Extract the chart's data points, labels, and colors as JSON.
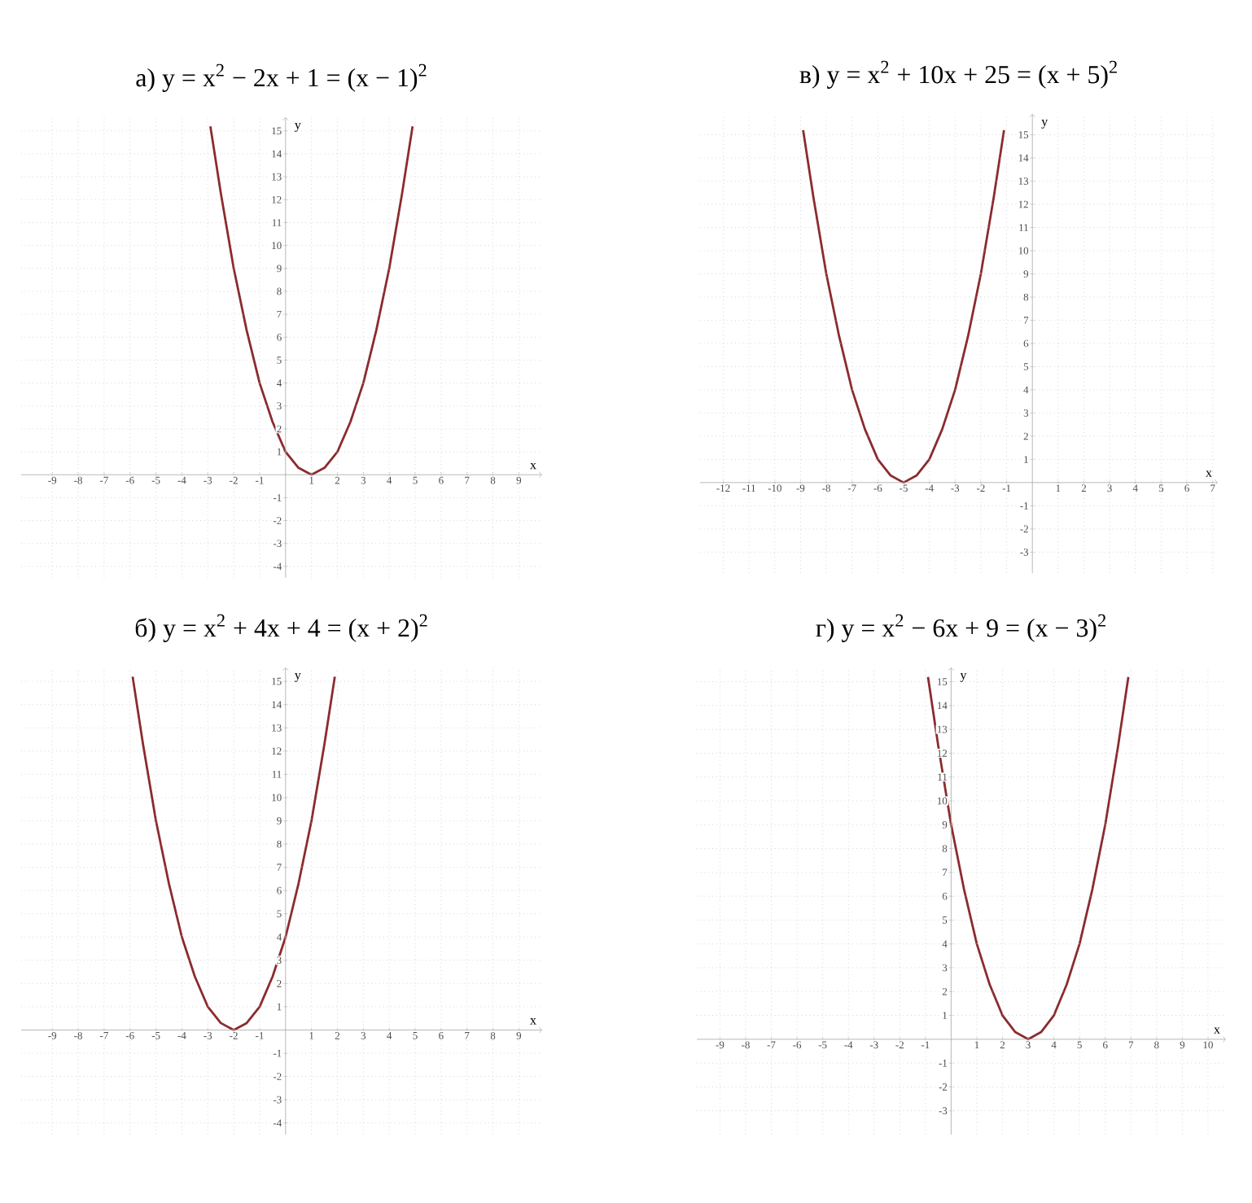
{
  "chart_data": [
    {
      "type": "line",
      "title": "а) y = x$^{2}$ − 2x + 1 = (x − 1)$^{2}$",
      "xlabel": "x",
      "ylabel": "y",
      "color": "#8b2b2e",
      "grid": true,
      "xlim": [
        -10.2,
        9.9
      ],
      "ylim": [
        -4.5,
        15.6
      ],
      "xticks": [
        -9,
        -8,
        -7,
        -6,
        -5,
        -4,
        -3,
        -2,
        -1,
        1,
        2,
        3,
        4,
        5,
        6,
        7,
        8,
        9
      ],
      "yticks": [
        -4,
        -3,
        -2,
        -1,
        1,
        2,
        3,
        4,
        5,
        6,
        7,
        8,
        9,
        10,
        11,
        12,
        13,
        14,
        15
      ],
      "x": [
        -2.9,
        -2.5,
        -2,
        -1.5,
        -1,
        -0.5,
        0,
        0.5,
        1,
        1.5,
        2,
        2.5,
        3,
        3.5,
        4,
        4.5,
        4.9
      ],
      "values": [
        15.2,
        12.3,
        9,
        6.3,
        4,
        2.3,
        1,
        0.3,
        0,
        0.3,
        1,
        2.3,
        4,
        6.3,
        9,
        12.3,
        15.2
      ]
    },
    {
      "type": "line",
      "title": "в) y = x$^{2}$ + 10x + 25 = (x + 5)$^{2}$",
      "xlabel": "x",
      "ylabel": "y",
      "color": "#8b2b2e",
      "grid": true,
      "xlim": [
        -12.9,
        7.2
      ],
      "ylim": [
        -3.9,
        15.9
      ],
      "xticks": [
        -12,
        -11,
        -10,
        -9,
        -8,
        -7,
        -6,
        -5,
        -4,
        -3,
        -2,
        -1,
        1,
        2,
        3,
        4,
        5,
        6,
        7
      ],
      "yticks": [
        -3,
        -2,
        -1,
        1,
        2,
        3,
        4,
        5,
        6,
        7,
        8,
        9,
        10,
        11,
        12,
        13,
        14,
        15
      ],
      "x": [
        -8.9,
        -8.5,
        -8,
        -7.5,
        -7,
        -6.5,
        -6,
        -5.5,
        -5,
        -4.5,
        -4,
        -3.5,
        -3,
        -2.5,
        -2,
        -1.5,
        -1.1
      ],
      "values": [
        15.2,
        12.3,
        9,
        6.3,
        4,
        2.3,
        1,
        0.3,
        0,
        0.3,
        1,
        2.3,
        4,
        6.3,
        9,
        12.3,
        15.2
      ]
    },
    {
      "type": "line",
      "title": "б) y = x$^{2}$ + 4x + 4 = (x + 2)$^{2}$",
      "xlabel": "x",
      "ylabel": "y",
      "color": "#8b2b2e",
      "grid": true,
      "xlim": [
        -10.2,
        9.9
      ],
      "ylim": [
        -4.5,
        15.6
      ],
      "xticks": [
        -9,
        -8,
        -7,
        -6,
        -5,
        -4,
        -3,
        -2,
        -1,
        1,
        2,
        3,
        4,
        5,
        6,
        7,
        8,
        9
      ],
      "yticks": [
        -4,
        -3,
        -2,
        -1,
        1,
        2,
        3,
        4,
        5,
        6,
        7,
        8,
        9,
        10,
        11,
        12,
        13,
        14,
        15
      ],
      "x": [
        -5.9,
        -5.5,
        -5,
        -4.5,
        -4,
        -3.5,
        -3,
        -2.5,
        -2,
        -1.5,
        -1,
        -0.5,
        0,
        0.5,
        1,
        1.5,
        1.9
      ],
      "values": [
        15.2,
        12.3,
        9,
        6.3,
        4,
        2.3,
        1,
        0.3,
        0,
        0.3,
        1,
        2.3,
        4,
        6.3,
        9,
        12.3,
        15.2
      ]
    },
    {
      "type": "line",
      "title": "г) y = x$^{2}$ − 6x + 9 = (x − 3)$^{2}$",
      "xlabel": "x",
      "ylabel": "y",
      "color": "#8b2b2e",
      "grid": true,
      "xlim": [
        -9.9,
        10.7
      ],
      "ylim": [
        -4,
        15.6
      ],
      "xticks": [
        -9,
        -8,
        -7,
        -6,
        -5,
        -4,
        -3,
        -2,
        -1,
        1,
        2,
        3,
        4,
        5,
        6,
        7,
        8,
        9,
        10
      ],
      "yticks": [
        -3,
        -2,
        -1,
        1,
        2,
        3,
        4,
        5,
        6,
        7,
        8,
        9,
        10,
        11,
        12,
        13,
        14,
        15
      ],
      "x": [
        -0.9,
        -0.5,
        0,
        0.5,
        1,
        1.5,
        2,
        2.5,
        3,
        3.5,
        4,
        4.5,
        5,
        5.5,
        6,
        6.5,
        6.9
      ],
      "values": [
        15.2,
        12.3,
        9,
        6.3,
        4,
        2.3,
        1,
        0.3,
        0,
        0.3,
        1,
        2.3,
        4,
        6.3,
        9,
        12.3,
        15.2
      ]
    }
  ]
}
